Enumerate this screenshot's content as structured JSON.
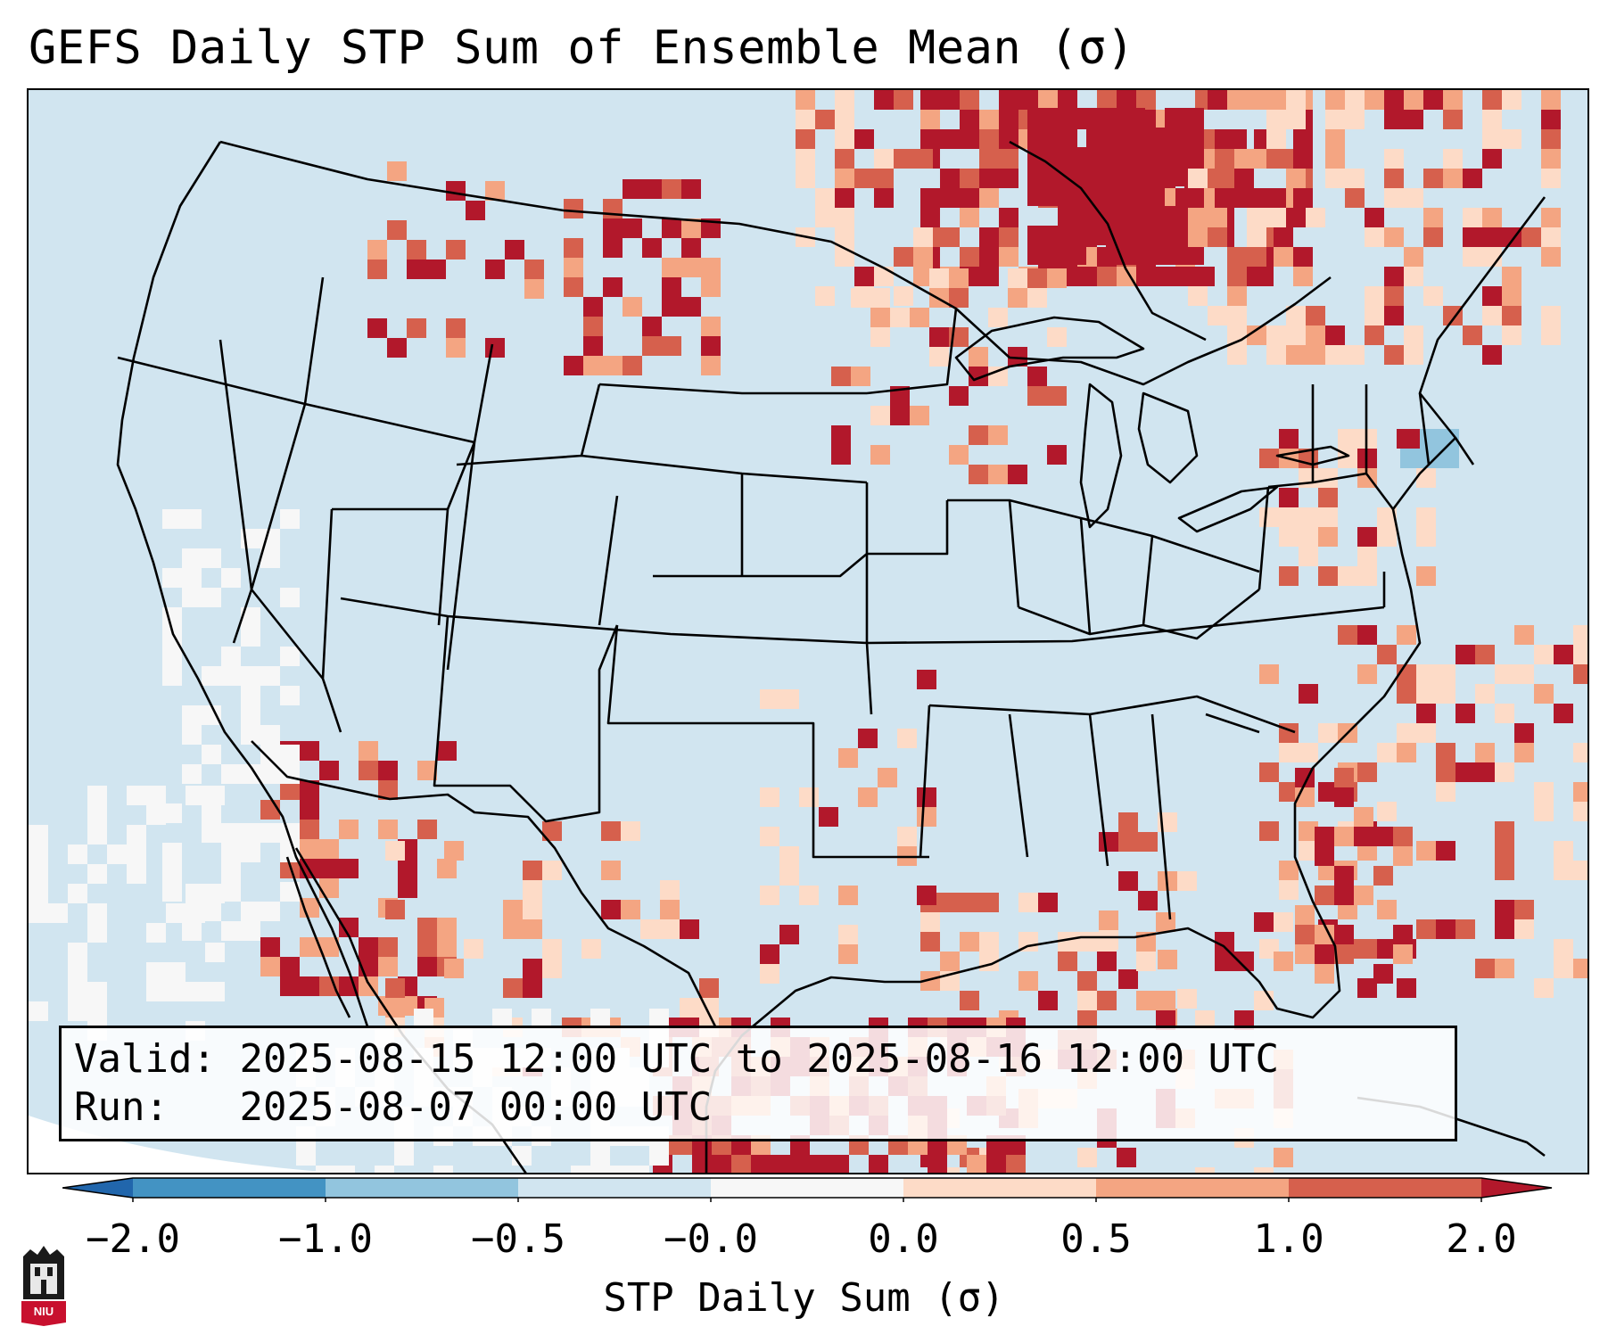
{
  "title": "GEFS Daily STP Sum of Ensemble Mean (σ)",
  "info": {
    "valid_label": "Valid:",
    "valid_value": "2025-08-15 12:00 UTC to 2025-08-16 12:00 UTC",
    "run_label": "Run:",
    "run_value": "2025-08-07 00:00 UTC"
  },
  "colorbar": {
    "label": "STP Daily Sum (σ)",
    "ticks": [
      "−2.0",
      "−1.0",
      "−0.5",
      "−0.0",
      "0.0",
      "0.5",
      "1.0",
      "2.0"
    ],
    "colors": [
      "#2166ac",
      "#4393c3",
      "#92c5de",
      "#d1e5f0",
      "#f7f7f7",
      "#fddbc7",
      "#f4a582",
      "#d6604d",
      "#b2182b"
    ]
  },
  "map": {
    "ocean_color": "#d1e5f0",
    "border_color": "#000000"
  },
  "logo": {
    "icon": "niu-castle-icon",
    "text": "NIU"
  }
}
